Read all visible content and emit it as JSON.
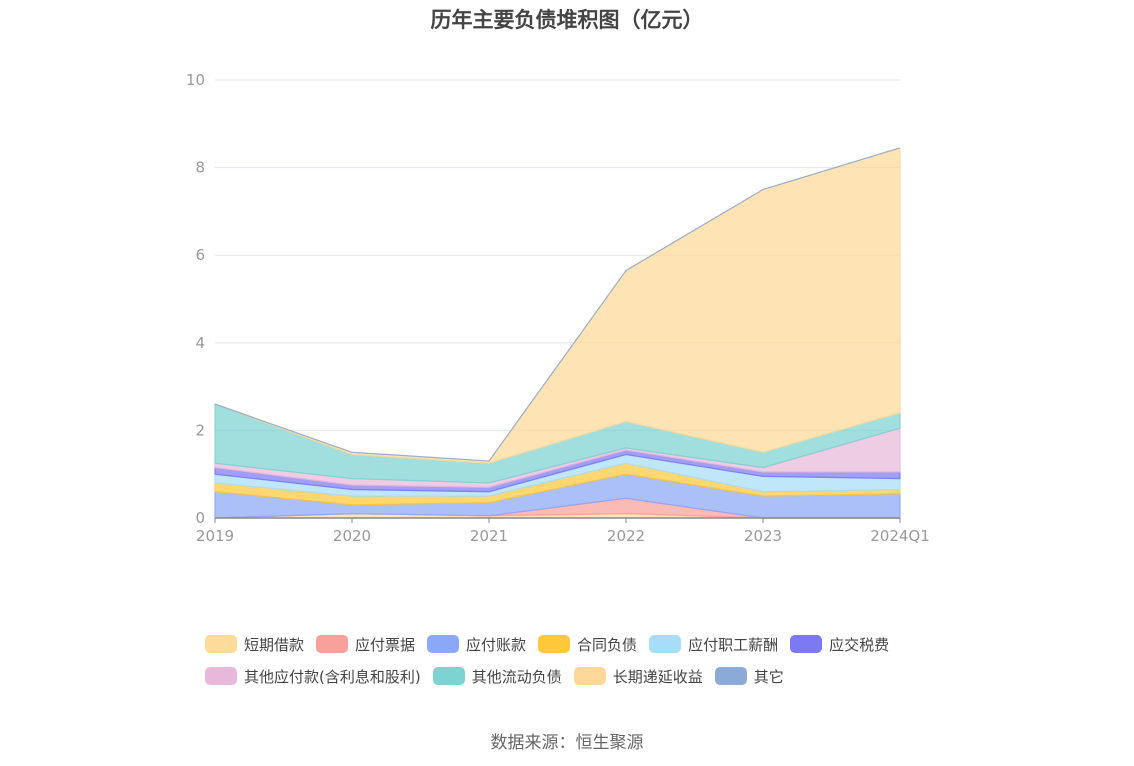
{
  "source_text": "数据来源：恒生聚源",
  "chart_data": {
    "type": "area",
    "stacked": true,
    "title": "历年主要负债堆积图（亿元）",
    "xlabel": "",
    "ylabel": "",
    "x": [
      "2019",
      "2020",
      "2021",
      "2022",
      "2023",
      "2024Q1"
    ],
    "ylim": [
      0,
      10
    ],
    "yticks": [
      0,
      2,
      4,
      6,
      8,
      10
    ],
    "grid": true,
    "legend_position": "bottom",
    "series": [
      {
        "name": "短期借款",
        "color": "#FDDC9A",
        "values": [
          0,
          0.1,
          0.05,
          0.1,
          0,
          0
        ]
      },
      {
        "name": "应付票据",
        "color": "#F8A09A",
        "values": [
          0,
          0,
          0,
          0.35,
          0,
          0
        ]
      },
      {
        "name": "应付账款",
        "color": "#8BA7F7",
        "values": [
          0.6,
          0.2,
          0.3,
          0.55,
          0.5,
          0.55
        ]
      },
      {
        "name": "合同负债",
        "color": "#FFC73A",
        "values": [
          0.2,
          0.2,
          0.15,
          0.25,
          0.1,
          0.1
        ]
      },
      {
        "name": "应付职工薪酬",
        "color": "#A8DDF8",
        "values": [
          0.2,
          0.15,
          0.1,
          0.2,
          0.35,
          0.25
        ]
      },
      {
        "name": "应交税费",
        "color": "#7B79F3",
        "values": [
          0.15,
          0.1,
          0.1,
          0.1,
          0.1,
          0.15
        ]
      },
      {
        "name": "其他应付款(含利息和股利)",
        "color": "#E8B8DA",
        "values": [
          0.1,
          0.15,
          0.1,
          0.05,
          0.1,
          1.0
        ]
      },
      {
        "name": "其他流动负债",
        "color": "#7DD3D2",
        "values": [
          1.35,
          0.55,
          0.45,
          0.6,
          0.35,
          0.35
        ]
      },
      {
        "name": "长期递延收益",
        "color": "#FDD898",
        "values": [
          0,
          0.05,
          0.05,
          3.45,
          6.0,
          6.05
        ]
      },
      {
        "name": "其它",
        "color": "#8BAAD8",
        "values": [
          0,
          0,
          0,
          0,
          0,
          0
        ]
      }
    ]
  }
}
